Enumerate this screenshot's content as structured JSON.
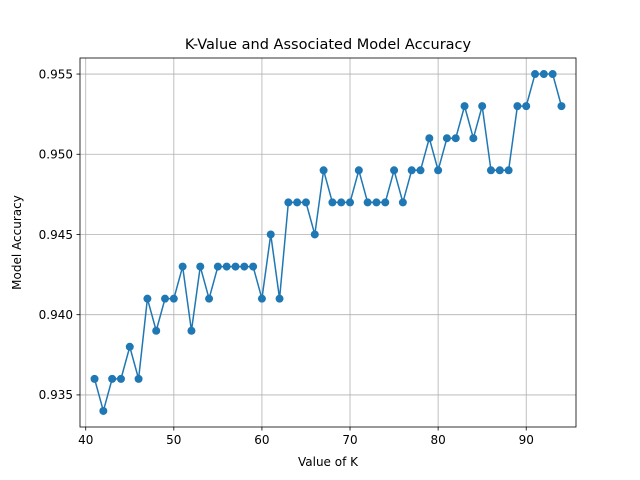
{
  "chart_data": {
    "type": "line",
    "title": "K-Value and Associated Model Accuracy",
    "xlabel": "Value of K",
    "ylabel": "Model Accuracy",
    "xlim": [
      39.35,
      95.65
    ],
    "ylim": [
      0.933,
      0.956
    ],
    "xticks": [
      40,
      50,
      60,
      70,
      80,
      90
    ],
    "yticks": [
      0.935,
      0.94,
      0.945,
      0.95,
      0.955
    ],
    "xtick_labels": [
      "40",
      "50",
      "60",
      "70",
      "80",
      "90"
    ],
    "ytick_labels": [
      "0.935",
      "0.940",
      "0.945",
      "0.950",
      "0.955"
    ],
    "grid": true,
    "marker": "circle",
    "color": "#1f77b4",
    "x": [
      41,
      42,
      43,
      44,
      45,
      46,
      47,
      48,
      49,
      50,
      51,
      52,
      53,
      54,
      55,
      56,
      57,
      58,
      59,
      60,
      61,
      62,
      63,
      64,
      65,
      66,
      67,
      68,
      69,
      70,
      71,
      72,
      73,
      74,
      75,
      76,
      77,
      78,
      79,
      80,
      81,
      82,
      83,
      84,
      85,
      86,
      87,
      88,
      89,
      90,
      91,
      92,
      93,
      94
    ],
    "y": [
      0.936,
      0.934,
      0.936,
      0.936,
      0.938,
      0.936,
      0.941,
      0.939,
      0.941,
      0.941,
      0.943,
      0.939,
      0.943,
      0.941,
      0.943,
      0.943,
      0.943,
      0.943,
      0.943,
      0.941,
      0.945,
      0.941,
      0.947,
      0.947,
      0.947,
      0.945,
      0.949,
      0.947,
      0.947,
      0.947,
      0.949,
      0.947,
      0.947,
      0.947,
      0.949,
      0.947,
      0.949,
      0.949,
      0.951,
      0.949,
      0.951,
      0.951,
      0.953,
      0.951,
      0.953,
      0.949,
      0.949,
      0.949,
      0.953,
      0.953,
      0.955,
      0.955,
      0.955,
      0.953
    ]
  }
}
